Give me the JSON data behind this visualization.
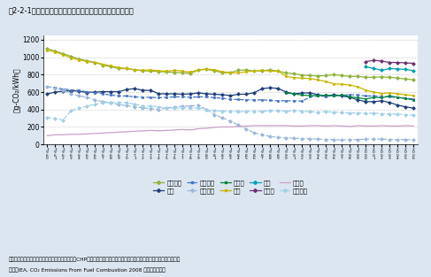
{
  "title": "図2-2-1　電力供給に係る二酸化炭素排出原単位の国際比較",
  "ylabel": "（g-CO₂/kWh）",
  "note1": "注：自家発電を除き、電気事業者分のみを評価。CHPプラント（熱電併給）・熱供給を除いた発電プラント分のみの値。",
  "note2": "資料：IEA, CO₂ Emissions From Fuel Combustion 2008 より環境省作成",
  "background": "#dce6f1",
  "plot_background": "#ffffff",
  "ylim": [
    0,
    1250
  ],
  "yticks": [
    0,
    200,
    400,
    600,
    800,
    1000,
    1200
  ],
  "years": [
    1960,
    1961,
    1962,
    1963,
    1964,
    1965,
    1966,
    1967,
    1968,
    1969,
    1970,
    1971,
    1972,
    1973,
    1974,
    1975,
    1976,
    1977,
    1978,
    1979,
    1980,
    1981,
    1982,
    1983,
    1984,
    1985,
    1986,
    1987,
    1988,
    1989,
    1990,
    1991,
    1992,
    1993,
    1994,
    1995,
    1996,
    1997,
    1998,
    1999,
    2000,
    2001,
    2002,
    2003,
    2004,
    2005,
    2006
  ],
  "series": {
    "世界全体": {
      "color": "#8db336",
      "marker": "D",
      "markersize": 2.0,
      "linewidth": 0.9,
      "linestyle": "-",
      "values": [
        1100,
        1070,
        1040,
        1010,
        980,
        960,
        940,
        910,
        890,
        870,
        870,
        855,
        845,
        840,
        835,
        830,
        825,
        820,
        815,
        855,
        860,
        845,
        820,
        825,
        850,
        855,
        840,
        845,
        855,
        840,
        820,
        810,
        795,
        790,
        785,
        790,
        800,
        790,
        780,
        780,
        770,
        770,
        775,
        770,
        760,
        750,
        740
      ]
    },
    "日本": {
      "color": "#1f3f7a",
      "marker": "D",
      "markersize": 2.0,
      "linewidth": 0.9,
      "linestyle": "-",
      "values": [
        580,
        600,
        610,
        615,
        610,
        595,
        600,
        605,
        605,
        605,
        630,
        640,
        620,
        620,
        580,
        580,
        580,
        575,
        580,
        590,
        580,
        575,
        570,
        560,
        575,
        575,
        595,
        640,
        650,
        640,
        600,
        580,
        590,
        590,
        570,
        555,
        570,
        555,
        540,
        510,
        490,
        490,
        500,
        480,
        450,
        430,
        415
      ]
    },
    "アメリカ": {
      "color": "#4472c4",
      "marker": "s",
      "markersize": 2.0,
      "linewidth": 0.9,
      "linestyle": "--",
      "values": [
        660,
        650,
        635,
        625,
        620,
        600,
        595,
        580,
        565,
        555,
        555,
        545,
        540,
        540,
        535,
        540,
        545,
        545,
        540,
        545,
        545,
        535,
        530,
        515,
        515,
        510,
        510,
        510,
        505,
        500,
        500,
        500,
        495,
        545,
        555,
        550,
        560,
        565,
        570,
        565,
        555,
        555,
        550,
        545,
        535,
        530,
        520
      ]
    },
    "フランス": {
      "color": "#9db8d9",
      "marker": "D",
      "markersize": 2.0,
      "linewidth": 0.9,
      "linestyle": "--",
      "values": [
        665,
        640,
        620,
        580,
        555,
        540,
        510,
        490,
        475,
        455,
        445,
        430,
        420,
        410,
        400,
        420,
        430,
        440,
        440,
        450,
        400,
        340,
        305,
        265,
        220,
        175,
        130,
        110,
        90,
        80,
        75,
        70,
        65,
        65,
        60,
        55,
        55,
        50,
        55,
        55,
        60,
        60,
        60,
        55,
        55,
        55,
        55
      ]
    },
    "ドイツ": {
      "color": "#00843d",
      "marker": "s",
      "markersize": 2.0,
      "linewidth": 0.9,
      "linestyle": "-",
      "values": [
        null,
        null,
        null,
        null,
        null,
        null,
        null,
        null,
        null,
        null,
        null,
        null,
        null,
        null,
        null,
        null,
        null,
        null,
        null,
        null,
        null,
        null,
        null,
        null,
        null,
        null,
        null,
        null,
        null,
        null,
        590,
        580,
        565,
        560,
        560,
        565,
        555,
        565,
        545,
        535,
        520,
        540,
        535,
        555,
        540,
        525,
        510
      ]
    },
    "英国": {
      "color": "#c8b400",
      "marker": "s",
      "markersize": 2.0,
      "linewidth": 0.9,
      "linestyle": "-",
      "values": [
        1080,
        1060,
        1030,
        990,
        970,
        950,
        940,
        920,
        900,
        880,
        870,
        855,
        850,
        855,
        845,
        840,
        850,
        840,
        830,
        855,
        865,
        855,
        835,
        820,
        820,
        835,
        840,
        850,
        840,
        840,
        780,
        765,
        760,
        755,
        740,
        720,
        695,
        690,
        680,
        660,
        620,
        600,
        585,
        590,
        580,
        570,
        560
      ]
    },
    "中国": {
      "color": "#00a0b0",
      "marker": "D",
      "markersize": 2.0,
      "linewidth": 0.9,
      "linestyle": "-",
      "values": [
        null,
        null,
        null,
        null,
        null,
        null,
        null,
        null,
        null,
        null,
        null,
        null,
        null,
        null,
        null,
        null,
        null,
        null,
        null,
        null,
        null,
        null,
        null,
        null,
        null,
        null,
        null,
        null,
        null,
        null,
        null,
        null,
        null,
        null,
        null,
        null,
        null,
        null,
        null,
        null,
        890,
        870,
        850,
        870,
        865,
        860,
        845
      ]
    },
    "インド": {
      "color": "#6b3070",
      "marker": "D",
      "markersize": 2.0,
      "linewidth": 0.9,
      "linestyle": "-",
      "values": [
        null,
        null,
        null,
        null,
        null,
        null,
        null,
        null,
        null,
        null,
        null,
        null,
        null,
        null,
        null,
        null,
        null,
        null,
        null,
        null,
        null,
        null,
        null,
        null,
        null,
        null,
        null,
        null,
        null,
        null,
        null,
        null,
        null,
        null,
        null,
        null,
        null,
        null,
        null,
        null,
        950,
        965,
        955,
        940,
        940,
        935,
        930
      ]
    },
    "カナダ": {
      "color": "#c8a0c8",
      "marker": null,
      "markersize": 0,
      "linewidth": 0.9,
      "linestyle": "-",
      "values": [
        100,
        110,
        110,
        115,
        115,
        120,
        125,
        130,
        135,
        140,
        145,
        150,
        155,
        160,
        155,
        160,
        165,
        170,
        165,
        180,
        185,
        195,
        200,
        200,
        205,
        210,
        215,
        215,
        215,
        215,
        215,
        210,
        210,
        215,
        215,
        210,
        215,
        210,
        205,
        215,
        210,
        210,
        215,
        210,
        210,
        215,
        210
      ]
    },
    "イタリア": {
      "color": "#a0d0e8",
      "marker": "D",
      "markersize": 2.0,
      "linewidth": 0.9,
      "linestyle": "--",
      "values": [
        310,
        295,
        280,
        390,
        415,
        440,
        460,
        475,
        480,
        480,
        480,
        460,
        440,
        440,
        430,
        420,
        415,
        420,
        415,
        420,
        400,
        385,
        380,
        380,
        375,
        380,
        375,
        380,
        385,
        385,
        380,
        385,
        380,
        375,
        370,
        375,
        370,
        365,
        360,
        360,
        355,
        360,
        350,
        350,
        345,
        340,
        335
      ]
    }
  },
  "legend_order": [
    "世界全体",
    "日本",
    "アメリカ",
    "フランス",
    "ドイツ",
    "英国",
    "中国",
    "インド",
    "カナダ",
    "イタリア"
  ]
}
